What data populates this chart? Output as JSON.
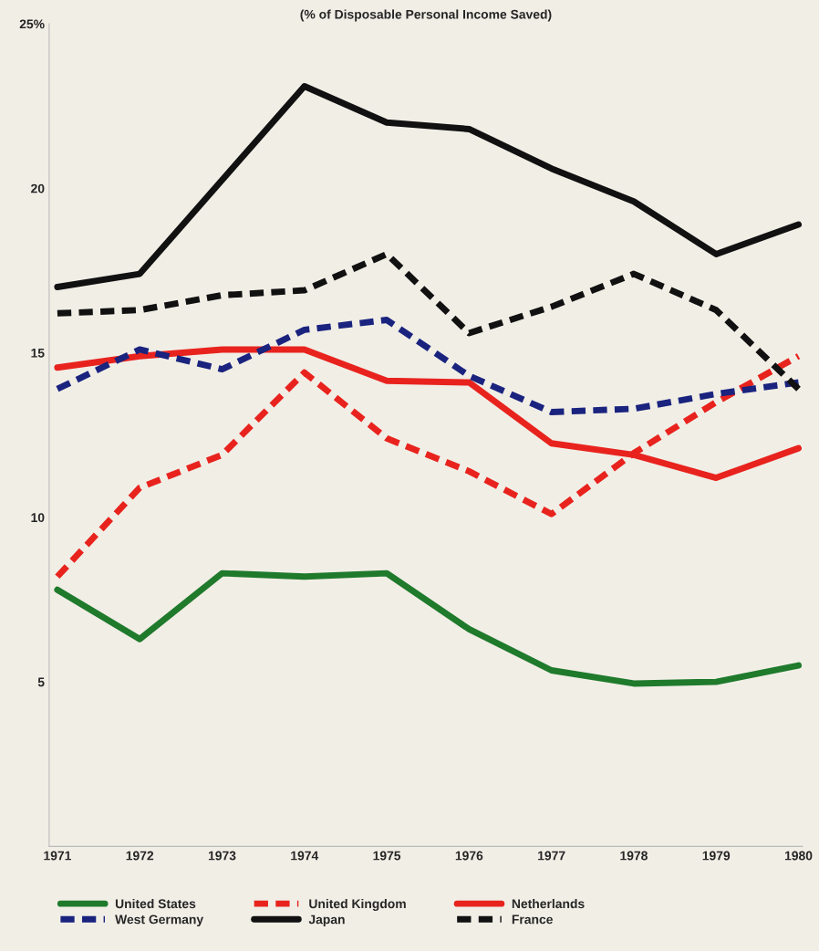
{
  "chart_data": {
    "type": "line",
    "title": "(% of Disposable Personal Income Saved)",
    "categories": [
      "1971",
      "1972",
      "1973",
      "1974",
      "1975",
      "1976",
      "1977",
      "1978",
      "1979",
      "1980"
    ],
    "ylim": [
      0,
      25
    ],
    "yticks": [
      5,
      10,
      15,
      20,
      {
        "value": 25,
        "label": "25%"
      }
    ],
    "grid": false,
    "legend": "bottom",
    "marker": "none",
    "series": [
      {
        "name": "United States",
        "color": "#1f7a2c",
        "line_style": "solid",
        "values": [
          7.8,
          6.3,
          8.3,
          8.2,
          8.3,
          6.6,
          5.35,
          4.95,
          5.0,
          5.5
        ]
      },
      {
        "name": "United Kingdom",
        "color": "#e8231e",
        "line_style": "dashed",
        "values": [
          8.2,
          10.9,
          11.9,
          14.4,
          12.4,
          11.4,
          10.1,
          11.95,
          13.5,
          14.9
        ]
      },
      {
        "name": "Netherlands",
        "color": "#e8231e",
        "line_style": "solid",
        "values": [
          14.55,
          14.9,
          15.1,
          15.1,
          14.15,
          14.1,
          12.25,
          11.9,
          11.2,
          12.1
        ]
      },
      {
        "name": "West Germany",
        "color": "#1a237e",
        "line_style": "dashed",
        "values": [
          13.9,
          15.1,
          14.5,
          15.7,
          16.0,
          14.3,
          13.2,
          13.3,
          13.75,
          14.1
        ]
      },
      {
        "name": "Japan",
        "color": "#111111",
        "line_style": "solid",
        "values": [
          17.0,
          17.4,
          20.25,
          23.1,
          22.0,
          21.8,
          20.6,
          19.6,
          18.0,
          18.9
        ]
      },
      {
        "name": "France",
        "color": "#111111",
        "line_style": "dashed",
        "values": [
          16.2,
          16.3,
          16.75,
          16.9,
          18.0,
          15.6,
          16.4,
          17.4,
          16.3,
          13.9
        ]
      }
    ]
  }
}
